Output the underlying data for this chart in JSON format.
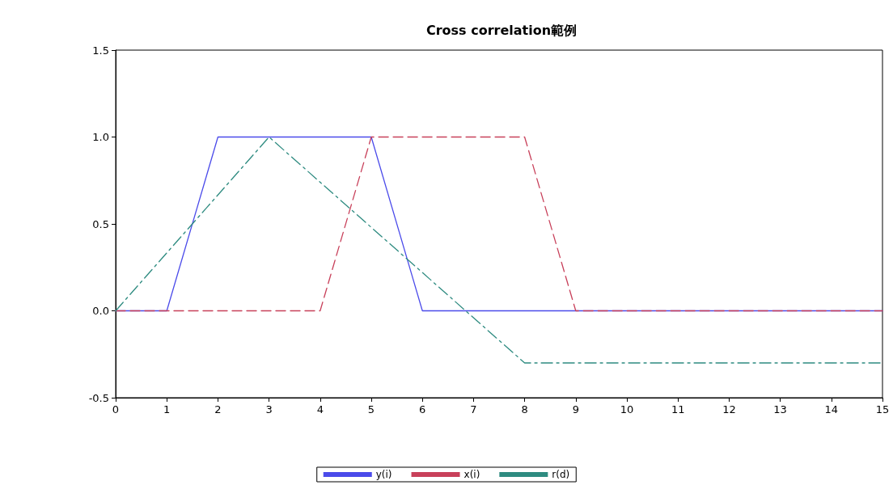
{
  "chart_data": {
    "type": "line",
    "title": "Cross correlation範例",
    "x": [
      0,
      1,
      2,
      3,
      4,
      5,
      6,
      7,
      8,
      9,
      10,
      11,
      12,
      13,
      14,
      15
    ],
    "series": [
      {
        "name": "y(i)",
        "color": "#4b4bea",
        "line_style": "solid",
        "values": [
          0,
          0,
          1,
          1,
          1,
          1,
          0,
          0,
          0,
          0,
          0,
          0,
          0,
          0,
          0,
          0
        ]
      },
      {
        "name": "x(i)",
        "color": "#c8405a",
        "line_style": "dashed",
        "values": [
          0,
          0,
          0,
          0,
          0,
          1,
          1,
          1,
          1,
          0,
          0,
          0,
          0,
          0,
          0,
          0
        ]
      },
      {
        "name": "r(d)",
        "color": "#2e8b80",
        "line_style": "dashdot",
        "x": [
          0,
          3,
          8,
          15
        ],
        "values": [
          0,
          1,
          -0.3,
          -0.3
        ]
      }
    ],
    "xlim": [
      0,
      15
    ],
    "xticks": [
      0,
      1,
      2,
      3,
      4,
      5,
      6,
      7,
      8,
      9,
      10,
      11,
      12,
      13,
      14,
      15
    ],
    "ylim": [
      -0.5,
      1.5
    ],
    "yticks": [
      -0.5,
      {
        "value": 0,
        "label": "0.0"
      },
      0.5,
      {
        "value": 1,
        "label": "1.0"
      },
      1.5
    ],
    "grid": false,
    "legend": "bottom",
    "marker": "none"
  }
}
